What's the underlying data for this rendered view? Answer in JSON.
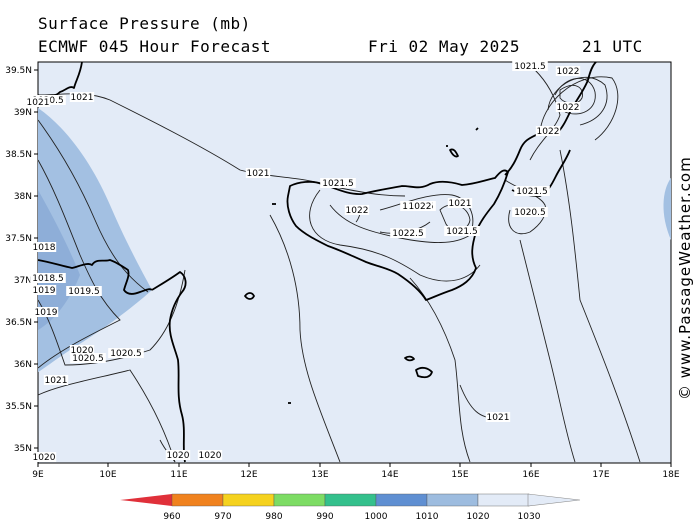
{
  "header": {
    "title": "Surface Pressure (mb)",
    "model": "ECMWF 045 Hour Forecast",
    "date": "Fri 02 May 2025",
    "time": "21 UTC"
  },
  "credit": "© www.PassageWeather.com",
  "axes": {
    "lat_labels": [
      "39.5N",
      "39N",
      "38.5N",
      "38N",
      "37.5N",
      "37N",
      "36.5N",
      "36N",
      "35.5N",
      "35N"
    ],
    "lon_labels": [
      "9E",
      "10E",
      "11E",
      "12E",
      "13E",
      "14E",
      "15E",
      "16E",
      "17E",
      "18E"
    ]
  },
  "isobar_labels": [
    "1021.5",
    "1022",
    "1021",
    "1020.5",
    "1021",
    "1021.5",
    "1022",
    "1022.5",
    "1021",
    "1021.5",
    "1022",
    "1022",
    "1022.5",
    "1022",
    "1021.5",
    "1021",
    "1020.5",
    "1018",
    "1018.5",
    "1019",
    "1019.5",
    "1019",
    "1020",
    "1020.5",
    "1020.5",
    "1021",
    "1020",
    "1020",
    "1021",
    "1020"
  ],
  "legend": {
    "values": [
      "960",
      "970",
      "980",
      "990",
      "1000",
      "1010",
      "1020",
      "1030"
    ],
    "colors": [
      "#e0303a",
      "#f0821e",
      "#f5d21e",
      "#7ddc64",
      "#34c08c",
      "#5f8fd2",
      "#9dbcdf",
      "#e3ebf7"
    ]
  },
  "colors": {
    "sea_background": "#e3ebf7",
    "low_pressure_fill": "#a3c0e2",
    "coastline": "#000000"
  }
}
